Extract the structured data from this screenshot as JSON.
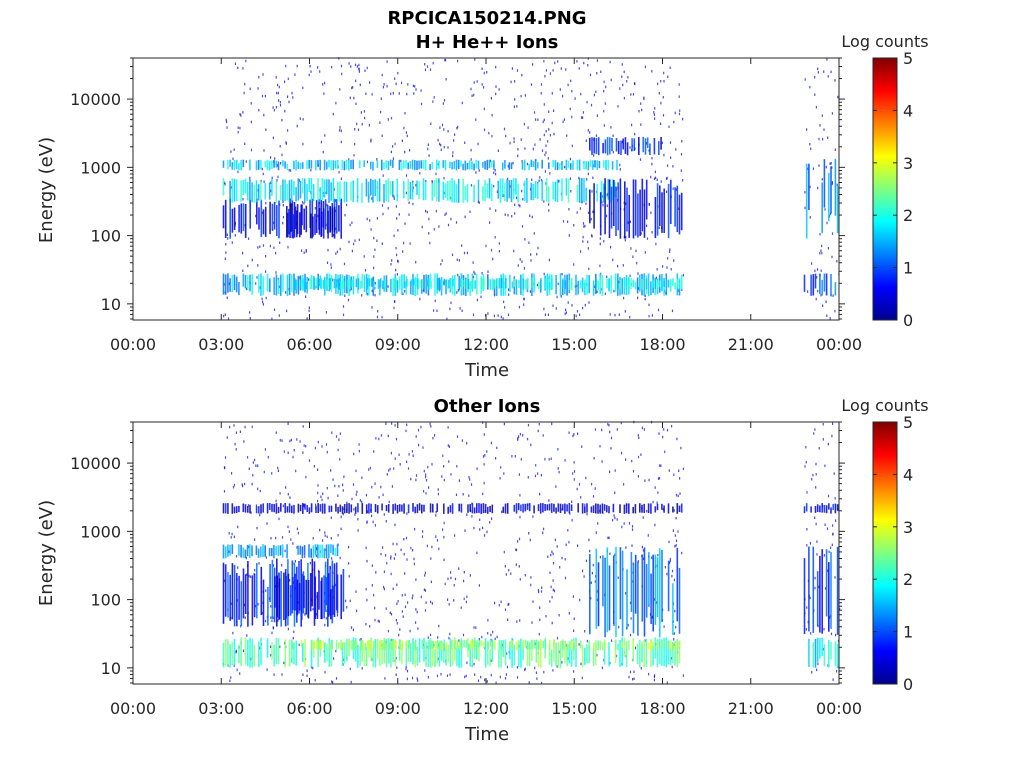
{
  "figure": {
    "filename": "RPCICA150214.PNG"
  },
  "chart_data": [
    {
      "type": "heatmap",
      "title": "H+ He++ Ions",
      "xlabel": "Time",
      "ylabel": "Energy (eV)",
      "yscale": "log",
      "ylim": [
        5.8,
        40000
      ],
      "xlim": [
        "00:00",
        "24:00"
      ],
      "x_ticks": [
        "00:00",
        "03:00",
        "06:00",
        "09:00",
        "12:00",
        "15:00",
        "18:00",
        "21:00",
        "00:00"
      ],
      "y_ticks": [
        {
          "label": "10",
          "value": 10
        },
        {
          "label": "100",
          "value": 100
        },
        {
          "label": "1000",
          "value": 1000
        },
        {
          "label": "10000",
          "value": 10000
        }
      ],
      "colorbar": {
        "label": "Log counts",
        "range": [
          0,
          5
        ],
        "ticks": [
          "0",
          "1",
          "2",
          "3",
          "4",
          "5"
        ],
        "colormap": "jet"
      },
      "data_intervals_hours": [
        [
          3.05,
          18.7
        ],
        [
          22.8,
          24.0
        ]
      ],
      "features": [
        {
          "t": [
            3.05,
            18.7
          ],
          "e": [
            13,
            28
          ],
          "level": 1.6
        },
        {
          "t": [
            5.4,
            18.7
          ],
          "e": [
            16,
            24
          ],
          "level": 1.9
        },
        {
          "t": [
            3.05,
            7.2
          ],
          "e": [
            90,
            350
          ],
          "level": 0.7
        },
        {
          "t": [
            5.2,
            6.9
          ],
          "e": [
            90,
            300
          ],
          "level": 0.4
        },
        {
          "t": [
            3.05,
            16.5
          ],
          "e": [
            300,
            700
          ],
          "level": 1.8
        },
        {
          "t": [
            3.05,
            16.5
          ],
          "e": [
            900,
            1300
          ],
          "level": 1.6
        },
        {
          "t": [
            15.5,
            18.7
          ],
          "e": [
            90,
            700
          ],
          "level": 0.6
        },
        {
          "t": [
            15.5,
            18.0
          ],
          "e": [
            1500,
            2800
          ],
          "level": 0.7
        },
        {
          "t": [
            22.8,
            24.0
          ],
          "e": [
            13,
            28
          ],
          "level": 1.0
        },
        {
          "t": [
            22.8,
            24.0
          ],
          "e": [
            90,
            1500
          ],
          "level": 1.2
        }
      ]
    },
    {
      "type": "heatmap",
      "title": "Other Ions",
      "xlabel": "Time",
      "ylabel": "Energy (eV)",
      "yscale": "log",
      "ylim": [
        5.8,
        40000
      ],
      "xlim": [
        "00:00",
        "24:00"
      ],
      "x_ticks": [
        "00:00",
        "03:00",
        "06:00",
        "09:00",
        "12:00",
        "15:00",
        "18:00",
        "21:00",
        "00:00"
      ],
      "y_ticks": [
        {
          "label": "10",
          "value": 10
        },
        {
          "label": "100",
          "value": 100
        },
        {
          "label": "1000",
          "value": 1000
        },
        {
          "label": "10000",
          "value": 10000
        }
      ],
      "colorbar": {
        "label": "Log counts",
        "range": [
          0,
          5
        ],
        "ticks": [
          "0",
          "1",
          "2",
          "3",
          "4",
          "5"
        ],
        "colormap": "jet"
      },
      "data_intervals_hours": [
        [
          3.05,
          18.7
        ],
        [
          22.8,
          24.0
        ]
      ],
      "features": [
        {
          "t": [
            3.05,
            18.7
          ],
          "e": [
            10,
            28
          ],
          "level": 2.3
        },
        {
          "t": [
            5.4,
            18.7
          ],
          "e": [
            18,
            26
          ],
          "level": 2.6
        },
        {
          "t": [
            3.05,
            7.2
          ],
          "e": [
            40,
            400
          ],
          "level": 0.8
        },
        {
          "t": [
            4.8,
            7.0
          ],
          "e": [
            50,
            250
          ],
          "level": 0.5
        },
        {
          "t": [
            3.05,
            7.0
          ],
          "e": [
            400,
            650
          ],
          "level": 1.5
        },
        {
          "t": [
            15.5,
            18.7
          ],
          "e": [
            28,
            600
          ],
          "level": 1.2
        },
        {
          "t": [
            3.05,
            18.7
          ],
          "e": [
            1800,
            2600
          ],
          "level": 0.4
        },
        {
          "t": [
            22.8,
            24.0
          ],
          "e": [
            10,
            28
          ],
          "level": 1.8
        },
        {
          "t": [
            22.8,
            24.0
          ],
          "e": [
            30,
            600
          ],
          "level": 0.9
        },
        {
          "t": [
            22.8,
            24.0
          ],
          "e": [
            1800,
            2600
          ],
          "level": 0.6
        }
      ]
    }
  ]
}
